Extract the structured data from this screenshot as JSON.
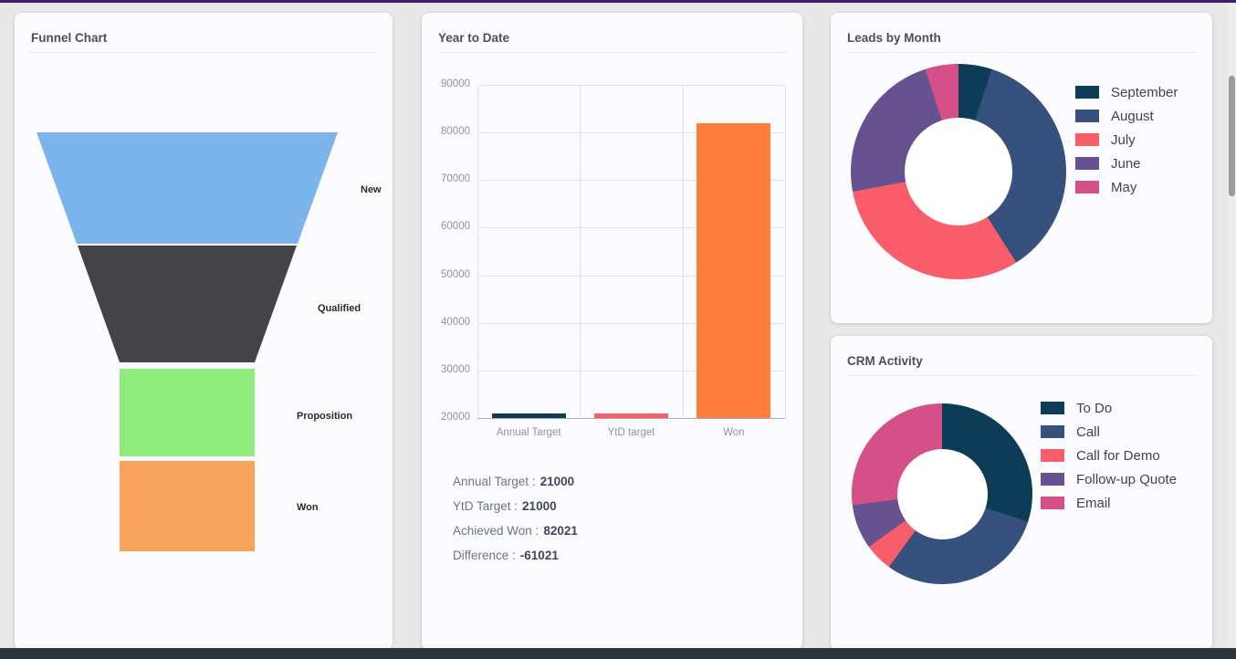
{
  "page": {
    "background": "#e8e8e8",
    "card_background": "#fcfcfe",
    "top_accent_color": "#3f1d72",
    "footer_color": "#2d3541",
    "scrollbar_thumb_color": "#9a9a9a"
  },
  "chart_data": [
    {
      "id": "funnel",
      "type": "funnel",
      "title": "Funnel Chart",
      "legend_position": "none",
      "segments": [
        {
          "label": "New",
          "color": "#7cb5ec",
          "est_share_pct": 27
        },
        {
          "label": "Qualified",
          "color": "#434348",
          "est_share_pct": 29
        },
        {
          "label": "Proposition",
          "color": "#90ed7d",
          "est_share_pct": 22
        },
        {
          "label": "Won",
          "color": "#f7a35c",
          "est_share_pct": 22
        }
      ]
    },
    {
      "id": "ytd",
      "type": "bar",
      "title": "Year to Date",
      "categories": [
        "Annual Target",
        "YtD target",
        "Won"
      ],
      "values": [
        21000,
        21000,
        82021
      ],
      "colors": [
        "#0d3d56",
        "#f95d6a",
        "#fd7e3d"
      ],
      "ylim": [
        20000,
        90000
      ],
      "yticks": [
        20000,
        30000,
        40000,
        50000,
        60000,
        70000,
        80000,
        90000
      ],
      "grid": true,
      "xlabel": "",
      "ylabel": ""
    },
    {
      "id": "leads",
      "type": "pie",
      "title": "Leads by Month",
      "donut": true,
      "legend_position": "right",
      "values_unit": "estimated_percent",
      "slices": [
        {
          "label": "September",
          "value": 5,
          "color": "#0d3d56"
        },
        {
          "label": "August",
          "value": 36,
          "color": "#37517e"
        },
        {
          "label": "July",
          "value": 31,
          "color": "#f95d6a"
        },
        {
          "label": "June",
          "value": 23,
          "color": "#665191"
        },
        {
          "label": "May",
          "value": 5,
          "color": "#d45087"
        }
      ]
    },
    {
      "id": "crm",
      "type": "pie",
      "title": "CRM Activity",
      "donut": true,
      "legend_position": "right",
      "values_unit": "estimated_percent",
      "slices": [
        {
          "label": "To Do",
          "value": 30,
          "color": "#0d3d56"
        },
        {
          "label": "Call",
          "value": 30,
          "color": "#37517e"
        },
        {
          "label": "Call for Demo",
          "value": 5,
          "color": "#f95d6a"
        },
        {
          "label": "Follow-up Quote",
          "value": 8,
          "color": "#665191"
        },
        {
          "label": "Email",
          "value": 27,
          "color": "#d45087"
        }
      ]
    }
  ],
  "ytd_summary": {
    "lines": [
      {
        "label": "Annual Target :",
        "value": "21000"
      },
      {
        "label": "YtD Target :",
        "value": "21000"
      },
      {
        "label": "Achieved Won :",
        "value": "82021"
      },
      {
        "label": "Difference :",
        "value": "-61021"
      }
    ]
  }
}
